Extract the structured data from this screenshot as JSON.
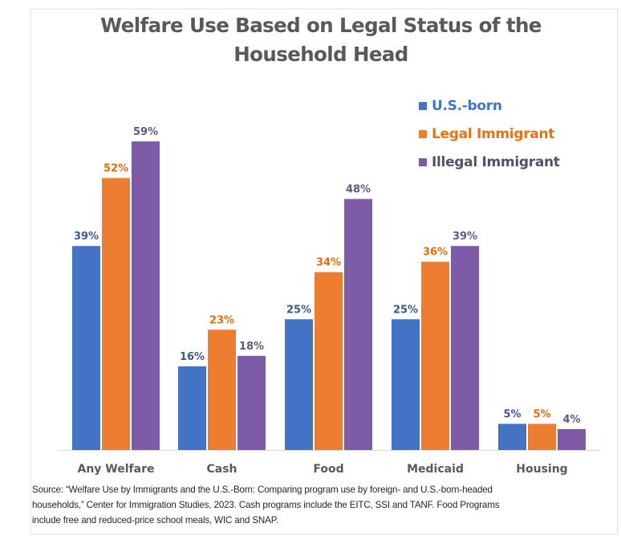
{
  "chart_data": {
    "type": "bar",
    "title": "Welfare Use Based on Legal Status of the Household Head",
    "title_lines": [
      "Welfare Use Based on Legal Status of the",
      "Household Head"
    ],
    "categories": [
      "Any Welfare",
      "Cash",
      "Food",
      "Medicaid",
      "Housing"
    ],
    "series": [
      {
        "name": "U.S.-born",
        "color": "#4472C4",
        "label_color": "#3A5A8C",
        "values": [
          39,
          16,
          25,
          25,
          5
        ],
        "labels": [
          "39%",
          "16%",
          "25%",
          "25%",
          "5%"
        ]
      },
      {
        "name": "Legal Immigrant",
        "color": "#ED7D31",
        "label_color": "#E46C0A",
        "values": [
          52,
          23,
          34,
          36,
          5
        ],
        "labels": [
          "52%",
          "23%",
          "34%",
          "36%",
          "5%"
        ]
      },
      {
        "name": "Illegal Immigrant",
        "color": "#7E5BA6",
        "label_color": "#5E5A7E",
        "values": [
          59,
          18,
          48,
          39,
          4
        ],
        "labels": [
          "59%",
          "18%",
          "48%",
          "39%",
          "4%"
        ]
      }
    ],
    "xlabel": "",
    "ylabel": "",
    "ylim": [
      0,
      60
    ],
    "grid": false,
    "legend": "top-right",
    "source_lines": [
      "Source: “Welfare Use by Immigrants and the U.S.-Born: Comparing program use by foreign- and U.S.-born-headed",
      "households,” Center for Immigration Studies, 2023. Cash programs include the EITC, SSI and TANF.  Food Programs",
      "include free and reduced-price school meals, WIC and SNAP."
    ]
  }
}
